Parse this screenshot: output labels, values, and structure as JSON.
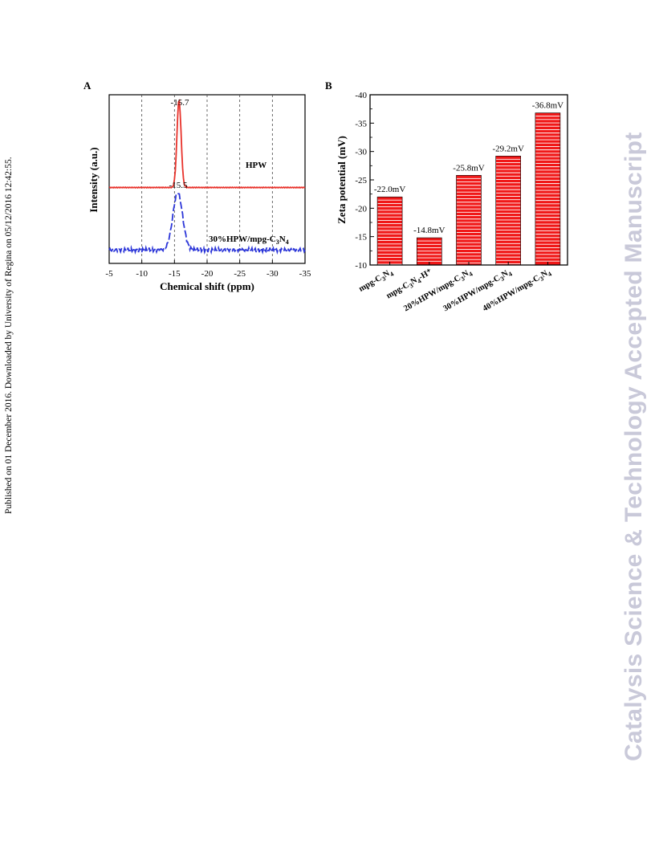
{
  "side_note": "Published on 01 December 2016. Downloaded by University of Regina on 05/12/2016 12:42:55.",
  "watermark": "Catalysis Science & Technology Accepted Manuscript",
  "chart_data": [
    {
      "panel_label": "A",
      "type": "line",
      "xlabel": "Chemical shift (ppm)",
      "ylabel": "Intensity (a.u.)",
      "xlim": [
        -5,
        -35
      ],
      "xticks": [
        "-5",
        "-10",
        "-15",
        "-20",
        "-25",
        "-30",
        "-35"
      ],
      "series": [
        {
          "name": "HPW",
          "color": "#e8322b",
          "peak_x": -15.7,
          "peak_label": "-15.7",
          "peak_width": 0.45,
          "baseline": 0.45,
          "peak_height": 0.52
        },
        {
          "name": "30%HPW/mpg-C3N4",
          "color": "#2b35d8",
          "dashed": true,
          "peak_x": -15.5,
          "peak_label": "-15.5",
          "peak_width": 1.05,
          "baseline": 0.08,
          "peak_height": 0.34
        }
      ],
      "series_labels": {
        "hpw": "HPW",
        "composite_main": "30%HPW/mpg-C",
        "sub_3": "3",
        "mid_N": "N",
        "sub_4": "4"
      }
    },
    {
      "panel_label": "B",
      "type": "bar",
      "ylabel": "Zeta potential (mV)",
      "ylim": [
        -10,
        -40
      ],
      "yticks": [
        "-10",
        "-15",
        "-20",
        "-25",
        "-30",
        "-35",
        "-40"
      ],
      "bar_color": "#f01818",
      "categories": [
        {
          "main": "mpg-C",
          "s1": "3",
          "n": "N",
          "s2": "4",
          "sup": ""
        },
        {
          "main": "mpg-C",
          "s1": "3",
          "n": "N",
          "s2": "4",
          "sup": "-H⁺"
        },
        {
          "main": "20%HPW/mpg-C",
          "s1": "3",
          "n": "N",
          "s2": "4",
          "sup": ""
        },
        {
          "main": "30%HPW/mpg-C",
          "s1": "3",
          "n": "N",
          "s2": "4",
          "sup": ""
        },
        {
          "main": "40%HPW/mpg-C",
          "s1": "3",
          "n": "N",
          "s2": "4",
          "sup": ""
        }
      ],
      "values": [
        -22.0,
        -14.8,
        -25.8,
        -29.2,
        -36.8
      ],
      "data_labels": [
        "-22.0mV",
        "-14.8mV",
        "-25.8mV",
        "-29.2mV",
        "-36.8mV"
      ]
    }
  ]
}
